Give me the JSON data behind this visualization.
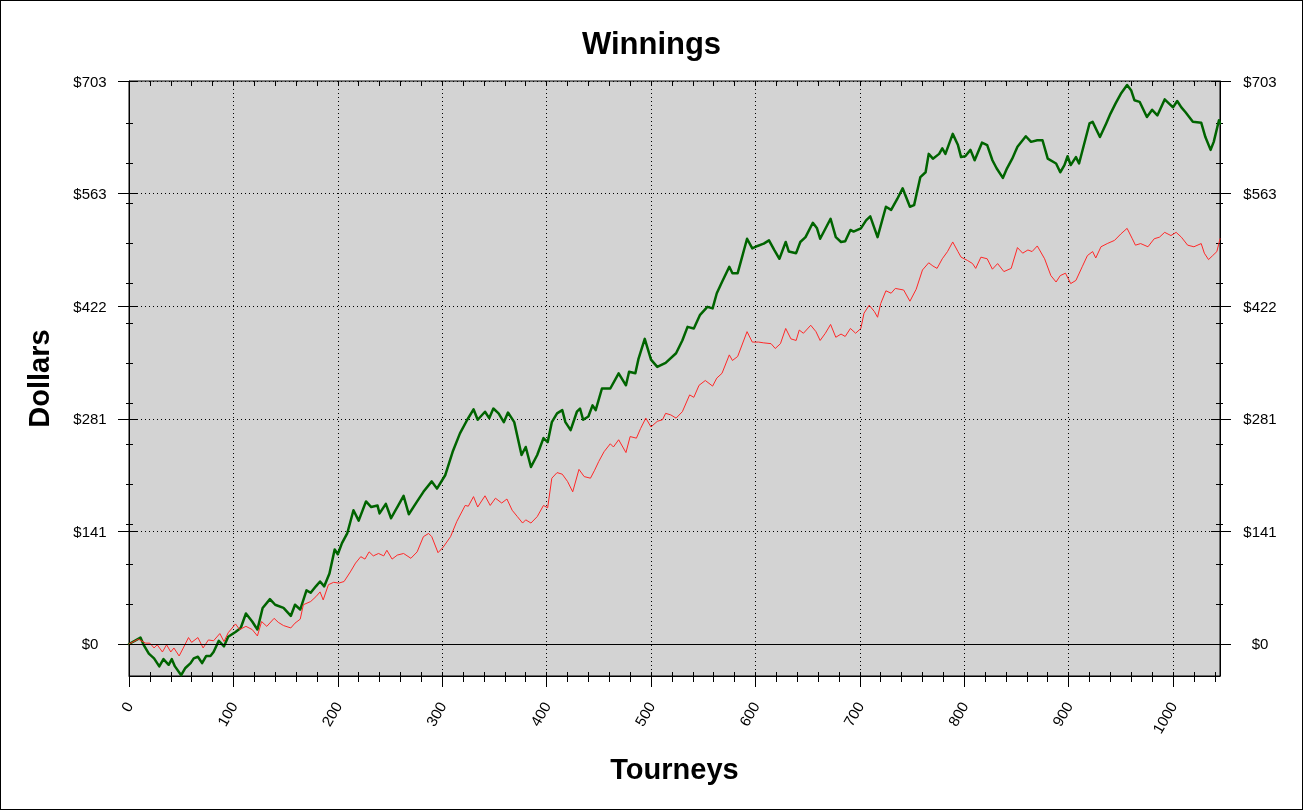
{
  "chart_data": {
    "type": "line",
    "title": "Winnings",
    "xlabel": "Tourneys",
    "ylabel": "Dollars",
    "xlim": [
      0,
      1045
    ],
    "xticks": [
      0,
      {
        "value": 20,
        "label": null
      },
      {
        "value": 40,
        "label": null
      },
      {
        "value": 60,
        "label": null
      },
      {
        "value": 80,
        "label": null
      },
      100,
      {
        "value": 120,
        "label": null
      },
      {
        "value": 140,
        "label": null
      },
      {
        "value": 160,
        "label": null
      },
      {
        "value": 180,
        "label": null
      },
      200,
      {
        "value": 220,
        "label": null
      },
      {
        "value": 240,
        "label": null
      },
      {
        "value": 260,
        "label": null
      },
      {
        "value": 280,
        "label": null
      },
      300,
      {
        "value": 320,
        "label": null
      },
      {
        "value": 340,
        "label": null
      },
      {
        "value": 360,
        "label": null
      },
      {
        "value": 380,
        "label": null
      },
      400,
      {
        "value": 420,
        "label": null
      },
      {
        "value": 440,
        "label": null
      },
      {
        "value": 460,
        "label": null
      },
      {
        "value": 480,
        "label": null
      },
      500,
      {
        "value": 520,
        "label": null
      },
      {
        "value": 540,
        "label": null
      },
      {
        "value": 560,
        "label": null
      },
      {
        "value": 580,
        "label": null
      },
      600,
      {
        "value": 620,
        "label": null
      },
      {
        "value": 640,
        "label": null
      },
      {
        "value": 660,
        "label": null
      },
      {
        "value": 680,
        "label": null
      },
      700,
      {
        "value": 720,
        "label": null
      },
      {
        "value": 740,
        "label": null
      },
      {
        "value": 760,
        "label": null
      },
      {
        "value": 780,
        "label": null
      },
      800,
      {
        "value": 820,
        "label": null
      },
      {
        "value": 840,
        "label": null
      },
      {
        "value": 860,
        "label": null
      },
      {
        "value": 880,
        "label": null
      },
      900,
      {
        "value": 920,
        "label": null
      },
      {
        "value": 940,
        "label": null
      },
      {
        "value": 960,
        "label": null
      },
      {
        "value": 980,
        "label": null
      },
      1000,
      {
        "value": 1020,
        "label": null
      },
      {
        "value": 1040,
        "label": null
      }
    ],
    "ylim": [
      -40,
      703
    ],
    "yticks": [
      {
        "value": 0,
        "label": "$0"
      },
      {
        "value": 50,
        "label": null
      },
      {
        "value": 100,
        "label": null
      },
      {
        "value": 141,
        "label": "$141"
      },
      {
        "value": 150,
        "label": null
      },
      {
        "value": 200,
        "label": null
      },
      {
        "value": 250,
        "label": null
      },
      {
        "value": 281,
        "label": "$281"
      },
      {
        "value": 300,
        "label": null
      },
      {
        "value": 350,
        "label": null
      },
      {
        "value": 400,
        "label": null
      },
      {
        "value": 422,
        "label": "$422"
      },
      {
        "value": 450,
        "label": null
      },
      {
        "value": 500,
        "label": null
      },
      {
        "value": 550,
        "label": null
      },
      {
        "value": 563,
        "label": "$563"
      },
      {
        "value": 600,
        "label": null
      },
      {
        "value": 650,
        "label": null
      },
      {
        "value": 703,
        "label": "$703"
      }
    ],
    "y2lim": [
      -40,
      703
    ],
    "y2ticks": [
      {
        "value": 0,
        "label": "$0"
      },
      {
        "value": 50,
        "label": null
      },
      {
        "value": 100,
        "label": null
      },
      {
        "value": 141,
        "label": "$141"
      },
      {
        "value": 150,
        "label": null
      },
      {
        "value": 200,
        "label": null
      },
      {
        "value": 250,
        "label": null
      },
      {
        "value": 281,
        "label": "$281"
      },
      {
        "value": 300,
        "label": null
      },
      {
        "value": 350,
        "label": null
      },
      {
        "value": 400,
        "label": null
      },
      {
        "value": 422,
        "label": "$422"
      },
      {
        "value": 450,
        "label": null
      },
      {
        "value": 500,
        "label": null
      },
      {
        "value": 550,
        "label": null
      },
      {
        "value": 563,
        "label": "$563"
      },
      {
        "value": 600,
        "label": null
      },
      {
        "value": 650,
        "label": null
      },
      {
        "value": 703,
        "label": "$703"
      }
    ],
    "grid": true,
    "ref_lines": [
      {
        "axis": "y",
        "value": 0,
        "color": "#000000"
      }
    ],
    "series": [
      {
        "color": "#006400",
        "x": [
          0,
          11,
          14,
          19,
          24,
          29,
          33,
          38,
          41,
          44,
          50,
          54,
          59,
          62,
          66,
          70,
          74,
          78,
          81,
          86,
          91,
          95,
          102,
          107,
          112,
          118,
          123,
          128,
          135,
          140,
          148,
          155,
          159,
          164,
          170,
          174,
          179,
          183,
          187,
          192,
          197,
          200,
          204,
          209,
          215,
          220,
          227,
          232,
          238,
          240,
          246,
          251,
          257,
          263,
          268,
          276,
          282,
          290,
          295,
          303,
          310,
          317,
          324,
          330,
          334,
          341,
          345,
          349,
          354,
          359,
          363,
          369,
          376,
          380,
          385,
          391,
          397,
          401,
          405,
          410,
          415,
          418,
          423,
          429,
          432,
          435,
          440,
          444,
          447,
          453,
          461,
          469,
          476,
          479,
          485,
          488,
          494,
          500,
          506,
          514,
          524,
          530,
          535,
          541,
          547,
          554,
          559,
          563,
          568,
          575,
          578,
          583,
          592,
          597,
          602,
          608,
          613,
          618,
          623,
          629,
          632,
          639,
          643,
          648,
          655,
          659,
          662,
          672,
          677,
          682,
          686,
          691,
          694,
          701,
          706,
          710,
          717,
          725,
          730,
          736,
          741,
          748,
          752,
          758,
          763,
          766,
          770,
          776,
          779,
          782,
          789,
          794,
          797,
          801,
          806,
          810,
          817,
          822,
          827,
          831,
          837,
          841,
          846,
          851,
          859,
          864,
          870,
          875,
          880,
          888,
          892,
          896,
          899,
          902,
          907,
          910,
          920,
          923,
          930,
          936,
          940,
          945,
          950,
          956,
          960,
          963,
          968,
          975,
          980,
          985,
          992,
          996,
          1000,
          1004,
          1008,
          1012,
          1019,
          1027,
          1031,
          1036,
          1039,
          1044,
          1045
        ],
        "values": [
          0,
          8,
          -1,
          -12,
          -18,
          -28,
          -19,
          -26,
          -19,
          -28,
          -39,
          -30,
          -24,
          -18,
          -16,
          -24,
          -15,
          -15,
          -10,
          4,
          -3,
          9,
          15,
          20,
          38,
          28,
          18,
          45,
          56,
          49,
          45,
          35,
          49,
          43,
          67,
          64,
          72,
          78,
          72,
          88,
          118,
          112,
          126,
          138,
          167,
          154,
          178,
          171,
          173,
          163,
          175,
          157,
          171,
          185,
          162,
          178,
          190,
          203,
          194,
          211,
          240,
          263,
          280,
          293,
          280,
          290,
          282,
          294,
          288,
          277,
          289,
          277,
          236,
          246,
          221,
          236,
          257,
          252,
          277,
          288,
          292,
          277,
          267,
          290,
          294,
          280,
          284,
          298,
          292,
          319,
          319,
          338,
          323,
          340,
          338,
          356,
          381,
          355,
          346,
          351,
          363,
          379,
          396,
          394,
          411,
          421,
          419,
          438,
          452,
          471,
          463,
          463,
          506,
          494,
          497,
          500,
          504,
          492,
          481,
          502,
          490,
          488,
          502,
          508,
          526,
          519,
          506,
          531,
          508,
          502,
          503,
          517,
          515,
          519,
          529,
          534,
          508,
          546,
          542,
          556,
          569,
          546,
          548,
          583,
          589,
          612,
          606,
          612,
          619,
          612,
          637,
          623,
          608,
          609,
          617,
          604,
          626,
          623,
          604,
          594,
          582,
          594,
          606,
          621,
          634,
          627,
          629,
          629,
          606,
          600,
          589,
          598,
          609,
          598,
          608,
          600,
          650,
          652,
          633,
          650,
          662,
          675,
          687,
          698,
          691,
          679,
          677,
          658,
          667,
          660,
          680,
          675,
          670,
          678,
          670,
          664,
          652,
          651,
          633,
          617,
          627,
          654,
          650
        ]
      },
      {
        "color": "#ff2828",
        "x": [
          0,
          9,
          16,
          20,
          24,
          27,
          32,
          36,
          40,
          43,
          48,
          52,
          57,
          60,
          66,
          71,
          76,
          81,
          87,
          91,
          95,
          102,
          106,
          112,
          118,
          123,
          127,
          132,
          139,
          143,
          148,
          155,
          159,
          164,
          167,
          174,
          179,
          183,
          186,
          191,
          196,
          201,
          206,
          212,
          217,
          222,
          226,
          230,
          234,
          239,
          244,
          247,
          252,
          257,
          263,
          270,
          276,
          282,
          287,
          290,
          296,
          301,
          308,
          314,
          322,
          325,
          330,
          334,
          341,
          346,
          351,
          357,
          362,
          367,
          372,
          377,
          380,
          385,
          391,
          397,
          401,
          405,
          410,
          415,
          420,
          425,
          431,
          436,
          442,
          446,
          450,
          455,
          461,
          464,
          469,
          476,
          480,
          486,
          490,
          495,
          500,
          506,
          511,
          514,
          519,
          524,
          530,
          537,
          541,
          546,
          552,
          559,
          563,
          568,
          575,
          578,
          583,
          592,
          597,
          603,
          608,
          615,
          619,
          624,
          629,
          634,
          639,
          642,
          646,
          653,
          658,
          662,
          667,
          672,
          677,
          682,
          686,
          691,
          696,
          701,
          704,
          709,
          714,
          717,
          720,
          725,
          730,
          734,
          742,
          748,
          754,
          760,
          766,
          770,
          774,
          779,
          784,
          789,
          794,
          797,
          803,
          808,
          811,
          816,
          822,
          827,
          832,
          838,
          845,
          851,
          856,
          861,
          865,
          870,
          877,
          883,
          888,
          892,
          897,
          902,
          907,
          913,
          918,
          923,
          926,
          931,
          937,
          944,
          950,
          956,
          961,
          964,
          969,
          976,
          982,
          987,
          992,
          998,
          1003,
          1008,
          1014,
          1020,
          1027,
          1030,
          1034,
          1038,
          1042,
          1045
        ],
        "values": [
          0,
          6,
          1,
          1,
          -5,
          -1,
          -10,
          -1,
          -10,
          -5,
          -15,
          -5,
          8,
          2,
          8,
          -5,
          5,
          4,
          13,
          3,
          14,
          25,
          18,
          22,
          18,
          10,
          28,
          22,
          32,
          27,
          23,
          20,
          26,
          31,
          49,
          53,
          59,
          65,
          55,
          74,
          77,
          76,
          78,
          90,
          101,
          109,
          106,
          115,
          110,
          113,
          110,
          117,
          106,
          111,
          113,
          107,
          115,
          134,
          138,
          134,
          114,
          121,
          134,
          153,
          173,
          172,
          184,
          171,
          185,
          173,
          182,
          176,
          181,
          167,
          159,
          151,
          155,
          151,
          159,
          173,
          170,
          207,
          214,
          212,
          203,
          190,
          218,
          209,
          207,
          217,
          228,
          240,
          250,
          246,
          255,
          239,
          259,
          257,
          269,
          282,
          271,
          278,
          280,
          288,
          286,
          282,
          290,
          311,
          308,
          323,
          329,
          322,
          332,
          338,
          361,
          354,
          359,
          390,
          377,
          377,
          376,
          375,
          369,
          375,
          394,
          381,
          379,
          392,
          388,
          398,
          390,
          379,
          388,
          399,
          383,
          387,
          384,
          394,
          388,
          394,
          413,
          423,
          415,
          408,
          425,
          441,
          438,
          444,
          442,
          428,
          443,
          467,
          476,
          472,
          469,
          481,
          490,
          502,
          490,
          483,
          479,
          475,
          469,
          483,
          481,
          468,
          475,
          465,
          469,
          495,
          488,
          492,
          490,
          497,
          481,
          460,
          452,
          460,
          463,
          450,
          454,
          471,
          485,
          490,
          482,
          496,
          500,
          504,
          512,
          519,
          506,
          498,
          500,
          496,
          506,
          508,
          514,
          510,
          514,
          508,
          498,
          496,
          500,
          488,
          480,
          485,
          490,
          506
        ]
      }
    ]
  }
}
